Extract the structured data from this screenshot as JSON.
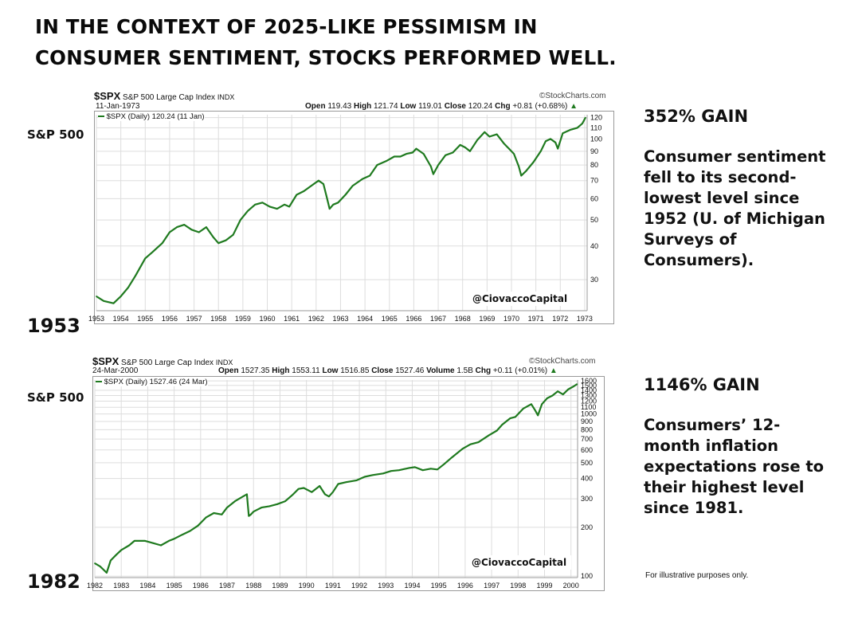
{
  "headline": {
    "line1": "IN THE CONTEXT OF 2025-LIKE PESSIMISM IN",
    "line2": "CONSUMER SENTIMENT, STOCKS PERFORMED WELL."
  },
  "disclaimer": "For illustrative purposes only.",
  "colors": {
    "series": "#1f7a1f",
    "grid": "#dddddd",
    "text": "#111111"
  },
  "chart_data": [
    {
      "type": "line",
      "symbol": "$SPX",
      "name": "S&P 500 Large Cap Index",
      "exchange": "INDX",
      "date": "11-Jan-1973",
      "ohlc": "Open 119.43  High 121.74  Low 119.01  Close 120.24  Chg +0.81 (+0.68%)",
      "ohlc_parts": {
        "open_label": "Open",
        "open": "119.43",
        "high_label": "High",
        "high": "121.74",
        "low_label": "Low",
        "low": "119.01",
        "close_label": "Close",
        "close": "120.24",
        "chg_label": "Chg",
        "chg": "+0.81 (+0.68%)"
      },
      "source": "©StockCharts.com",
      "legend": "$SPX (Daily) 120.24 (11 Jan)",
      "watermark": "@CiovaccoCapital",
      "side_label": "S&P 500",
      "start_year_label": "1953",
      "gain_label": "352% GAIN",
      "description": "Consumer sentiment fell to its second-lowest level since 1952 (U. of Michigan Surveys of Consumers).",
      "desc_lines": [
        "Consumer sentiment",
        "fell to its second-",
        "lowest level since",
        "1952 (U. of Michigan",
        "Surveys of",
        "Consumers)."
      ],
      "yscale": "log",
      "ylim": [
        23,
        123
      ],
      "y_ticks": [
        30,
        40,
        50,
        60,
        70,
        80,
        90,
        100,
        110,
        120
      ],
      "x_ticks": [
        "1953",
        "1954",
        "1955",
        "1956",
        "1957",
        "1958",
        "1959",
        "1960",
        "1961",
        "1962",
        "1963",
        "1964",
        "1965",
        "1966",
        "1967",
        "1968",
        "1969",
        "1970",
        "1971",
        "1972",
        "1973"
      ],
      "xlim": [
        1953.0,
        1973.1
      ],
      "series": [
        {
          "name": "$SPX (Daily)",
          "x": [
            1953.0,
            1953.3,
            1953.7,
            1954.0,
            1954.3,
            1954.6,
            1955.0,
            1955.3,
            1955.7,
            1956.0,
            1956.3,
            1956.6,
            1956.9,
            1957.2,
            1957.5,
            1957.8,
            1958.0,
            1958.3,
            1958.6,
            1958.9,
            1959.2,
            1959.5,
            1959.8,
            1960.1,
            1960.4,
            1960.7,
            1960.9,
            1961.2,
            1961.5,
            1961.9,
            1962.1,
            1962.3,
            1962.45,
            1962.55,
            1962.7,
            1962.9,
            1963.2,
            1963.5,
            1963.9,
            1964.2,
            1964.5,
            1964.9,
            1965.2,
            1965.45,
            1965.7,
            1965.95,
            1966.1,
            1966.4,
            1966.7,
            1966.8,
            1967.0,
            1967.3,
            1967.6,
            1967.9,
            1968.1,
            1968.3,
            1968.6,
            1968.9,
            1969.1,
            1969.4,
            1969.7,
            1969.9,
            1970.1,
            1970.3,
            1970.4,
            1970.6,
            1970.9,
            1971.2,
            1971.4,
            1971.6,
            1971.8,
            1971.9,
            1972.1,
            1972.4,
            1972.7,
            1972.9,
            1973.03
          ],
          "y": [
            26,
            25,
            24.5,
            26,
            28,
            31,
            36,
            38,
            41,
            45,
            47,
            48,
            46,
            45,
            47,
            43,
            41,
            42,
            44,
            50,
            54,
            57,
            58,
            56,
            55,
            57,
            56,
            62,
            64,
            68,
            70,
            68,
            60,
            55,
            57,
            58,
            62,
            67,
            71,
            73,
            80,
            83,
            86,
            86,
            88,
            89,
            92,
            88,
            79,
            74,
            80,
            87,
            89,
            95,
            93,
            90,
            99,
            106,
            102,
            104,
            96,
            92,
            88,
            79,
            73,
            76,
            82,
            90,
            98,
            100,
            97,
            92,
            105,
            108,
            110,
            114,
            120
          ]
        }
      ]
    },
    {
      "type": "line",
      "symbol": "$SPX",
      "name": "S&P 500 Large Cap Index",
      "exchange": "INDX",
      "date": "24-Mar-2000",
      "ohlc": "Open 1527.35  High 1553.11  Low 1516.85  Close 1527.46  Volume 1.5B  Chg +0.11 (+0.01%)",
      "ohlc_parts": {
        "open_label": "Open",
        "open": "1527.35",
        "high_label": "High",
        "high": "1553.11",
        "low_label": "Low",
        "low": "1516.85",
        "close_label": "Close",
        "close": "1527.46",
        "vol_label": "Volume",
        "volume": "1.5B",
        "chg_label": "Chg",
        "chg": "+0.11 (+0.01%)"
      },
      "source": "©StockCharts.com",
      "legend": "$SPX (Daily) 1527.46 (24 Mar)",
      "watermark": "@CiovaccoCapital",
      "side_label": "S&P 500",
      "start_year_label": "1982",
      "gain_label": "1146% GAIN",
      "description": "Consumers’ 12-month inflation expectations rose to their highest level since 1981.",
      "desc_lines": [
        "Consumers’ 12-",
        "month inflation",
        "expectations rose to",
        "their highest level",
        "since 1981."
      ],
      "yscale": "log",
      "ylim": [
        98,
        1620
      ],
      "y_ticks": [
        100,
        200,
        300,
        400,
        500,
        600,
        700,
        800,
        900,
        1000,
        1100,
        1200,
        1300,
        1400,
        1500,
        1600
      ],
      "x_ticks": [
        "1982",
        "1983",
        "1984",
        "1985",
        "1986",
        "1987",
        "1988",
        "1989",
        "1990",
        "1991",
        "1992",
        "1993",
        "1994",
        "1995",
        "1996",
        "1997",
        "1998",
        "1999",
        "2000"
      ],
      "xlim": [
        1982.0,
        2000.25
      ],
      "series": [
        {
          "name": "$SPX (Daily)",
          "x": [
            1982.0,
            1982.2,
            1982.45,
            1982.6,
            1982.8,
            1983.0,
            1983.3,
            1983.5,
            1983.9,
            1984.2,
            1984.5,
            1984.8,
            1985.0,
            1985.3,
            1985.6,
            1985.9,
            1986.2,
            1986.5,
            1986.8,
            1987.0,
            1987.3,
            1987.6,
            1987.75,
            1987.82,
            1987.9,
            1988.0,
            1988.3,
            1988.6,
            1988.9,
            1989.2,
            1989.5,
            1989.7,
            1989.9,
            1990.2,
            1990.5,
            1990.7,
            1990.85,
            1991.0,
            1991.2,
            1991.5,
            1991.9,
            1992.2,
            1992.5,
            1992.9,
            1993.2,
            1993.5,
            1993.9,
            1994.1,
            1994.4,
            1994.7,
            1994.95,
            1995.2,
            1995.5,
            1995.9,
            1996.2,
            1996.5,
            1996.9,
            1997.2,
            1997.4,
            1997.7,
            1997.9,
            1998.2,
            1998.5,
            1998.65,
            1998.75,
            1998.9,
            1999.1,
            1999.3,
            1999.5,
            1999.7,
            1999.9,
            2000.1,
            2000.23
          ],
          "y": [
            120,
            115,
            105,
            125,
            135,
            145,
            155,
            165,
            165,
            160,
            155,
            165,
            170,
            180,
            190,
            205,
            230,
            245,
            240,
            265,
            290,
            310,
            320,
            235,
            240,
            250,
            265,
            270,
            278,
            290,
            320,
            345,
            350,
            330,
            360,
            320,
            310,
            330,
            370,
            380,
            390,
            410,
            420,
            430,
            445,
            450,
            465,
            470,
            450,
            460,
            455,
            490,
            540,
            610,
            650,
            670,
            740,
            790,
            860,
            940,
            960,
            1080,
            1150,
            1050,
            980,
            1150,
            1250,
            1300,
            1380,
            1320,
            1420,
            1480,
            1527
          ]
        }
      ]
    }
  ]
}
